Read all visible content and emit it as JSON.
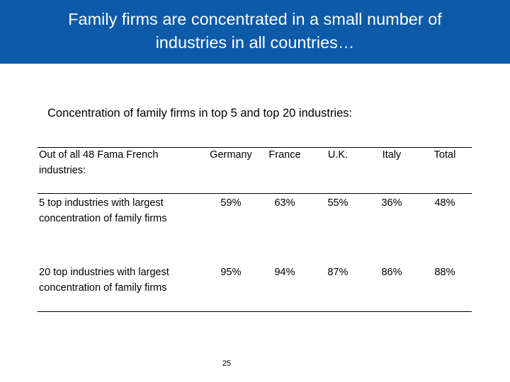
{
  "slide": {
    "title": "Family firms are concentrated in a small number of industries in all countries…",
    "subtitle": "Concentration of family firms in top 5 and top 20 industries:",
    "page_number": "25",
    "accent_color": "#0c5aa8"
  },
  "table": {
    "header_label": "Out of all 48 Fama French industries:",
    "columns": [
      "Germany",
      "France",
      "U.K.",
      "Italy",
      "Total"
    ],
    "rows": [
      {
        "label": "5 top industries with largest concentration of family firms",
        "values": [
          "59%",
          "63%",
          "55%",
          "36%",
          "48%"
        ]
      },
      {
        "label": "20 top industries with largest concentration of family firms",
        "values": [
          "95%",
          "94%",
          "87%",
          "86%",
          "88%"
        ]
      }
    ]
  }
}
